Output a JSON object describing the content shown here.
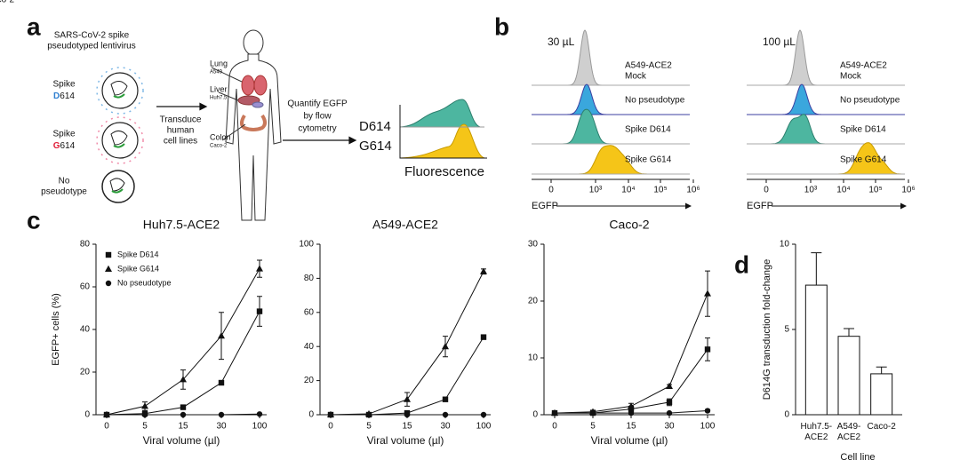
{
  "panels": [
    "a",
    "b",
    "c",
    "d"
  ],
  "panel_a": {
    "virus_title": [
      "SARS-CoV-2 spike",
      "pseudotyped lentivirus"
    ],
    "variants": [
      {
        "prefix": "Spike",
        "letter": "D",
        "suffix": "614"
      },
      {
        "prefix": "Spike",
        "letter": "G",
        "suffix": "614"
      }
    ],
    "no_pseudotype": [
      "No",
      "pseudotype"
    ],
    "step1": [
      "Transduce",
      "human",
      "cell lines"
    ],
    "organs": [
      {
        "name": "Lung",
        "cell": "A549"
      },
      {
        "name": "Liver",
        "cell": "Huh7.5"
      },
      {
        "name": "Colon",
        "cell": "Caco-2"
      }
    ],
    "step2": [
      "Quantify EGFP",
      "by flow",
      "cytometry"
    ],
    "histogram_labels": [
      "D614",
      "G614"
    ],
    "histogram_axis": "Fluorescence"
  },
  "panel_b": {
    "columns": [
      "30 µL",
      "100 µL"
    ],
    "rows": [
      [
        "A549-ACE2",
        "Mock"
      ],
      [
        "No pseudotype"
      ],
      [
        "Spike D614"
      ],
      [
        "Spike G614"
      ]
    ],
    "axis_label": "EGFP",
    "ticks": [
      "0",
      "10³",
      "10⁴",
      "10⁵",
      "10⁶"
    ]
  },
  "chart_data": [
    {
      "type": "line",
      "title": "Huh7.5-ACE2",
      "y_label": "EGFP+ cells (%)",
      "x_label": "Viral volume (µl)",
      "categories": [
        "0",
        "5",
        "15",
        "30",
        "100"
      ],
      "ylim": [
        0,
        80
      ],
      "yticks": [
        0,
        20,
        40,
        60,
        80
      ],
      "legend": "upper left",
      "series": [
        {
          "name": "Spike D614",
          "marker": "square",
          "color": "#111111",
          "values": [
            0,
            0.5,
            3.5,
            15,
            48.5
          ],
          "errors": [
            0,
            0.5,
            0.5,
            1,
            7
          ]
        },
        {
          "name": "Spike G614",
          "marker": "triangle",
          "color": "#111111",
          "values": [
            0,
            4,
            16.5,
            37,
            68.5
          ],
          "errors": [
            0,
            2,
            4.5,
            11,
            4
          ]
        },
        {
          "name": "No pseudotype",
          "marker": "circle",
          "color": "#111111",
          "values": [
            0,
            0,
            0,
            0,
            0.3
          ],
          "errors": [
            0,
            0,
            0,
            0,
            0
          ]
        }
      ]
    },
    {
      "type": "line",
      "title": "A549-ACE2",
      "x_label": "Viral volume (µl)",
      "categories": [
        "0",
        "5",
        "15",
        "30",
        "100"
      ],
      "ylim": [
        0,
        100
      ],
      "yticks": [
        0,
        20,
        40,
        60,
        80,
        100
      ],
      "series": [
        {
          "marker": "square",
          "color": "#111111",
          "values": [
            0,
            0,
            1,
            9,
            45.5
          ],
          "errors": [
            0,
            0,
            0.5,
            1,
            0.5
          ]
        },
        {
          "marker": "triangle",
          "color": "#111111",
          "values": [
            0,
            0.5,
            9,
            40,
            84
          ],
          "errors": [
            0,
            0.5,
            4,
            6,
            1.5
          ]
        },
        {
          "marker": "circle",
          "color": "#111111",
          "values": [
            0,
            0,
            0,
            0,
            0
          ],
          "errors": [
            0,
            0,
            0,
            0,
            0
          ]
        }
      ]
    },
    {
      "type": "line",
      "title": "Caco-2",
      "x_label": "Viral volume (µl)",
      "categories": [
        "0",
        "5",
        "15",
        "30",
        "100"
      ],
      "ylim": [
        0,
        30
      ],
      "yticks": [
        0,
        10,
        20,
        30
      ],
      "series": [
        {
          "marker": "square",
          "color": "#111111",
          "values": [
            0.3,
            0.3,
            1,
            2.2,
            11.5
          ],
          "errors": [
            0,
            0.2,
            0.5,
            0.6,
            2
          ]
        },
        {
          "marker": "triangle",
          "color": "#111111",
          "values": [
            0.3,
            0.5,
            1.5,
            5,
            21.3
          ],
          "errors": [
            0,
            0.3,
            0.5,
            0.3,
            4
          ]
        },
        {
          "marker": "circle",
          "color": "#111111",
          "values": [
            0.3,
            0.3,
            0.3,
            0.3,
            0.7
          ],
          "errors": [
            0,
            0,
            0,
            0.1,
            0.2
          ]
        }
      ]
    },
    {
      "type": "bar",
      "y_label": "D614G transduction fold-change",
      "x_label": "Cell line",
      "categories": [
        "Huh7.5-\nACE2",
        "A549-\nACE2",
        "Caco-2"
      ],
      "values": [
        7.6,
        4.6,
        2.4
      ],
      "errors": [
        1.9,
        0.45,
        0.4
      ],
      "color": "#ffffff",
      "ylim": [
        0,
        10
      ],
      "yticks": [
        0,
        5,
        10
      ]
    }
  ]
}
